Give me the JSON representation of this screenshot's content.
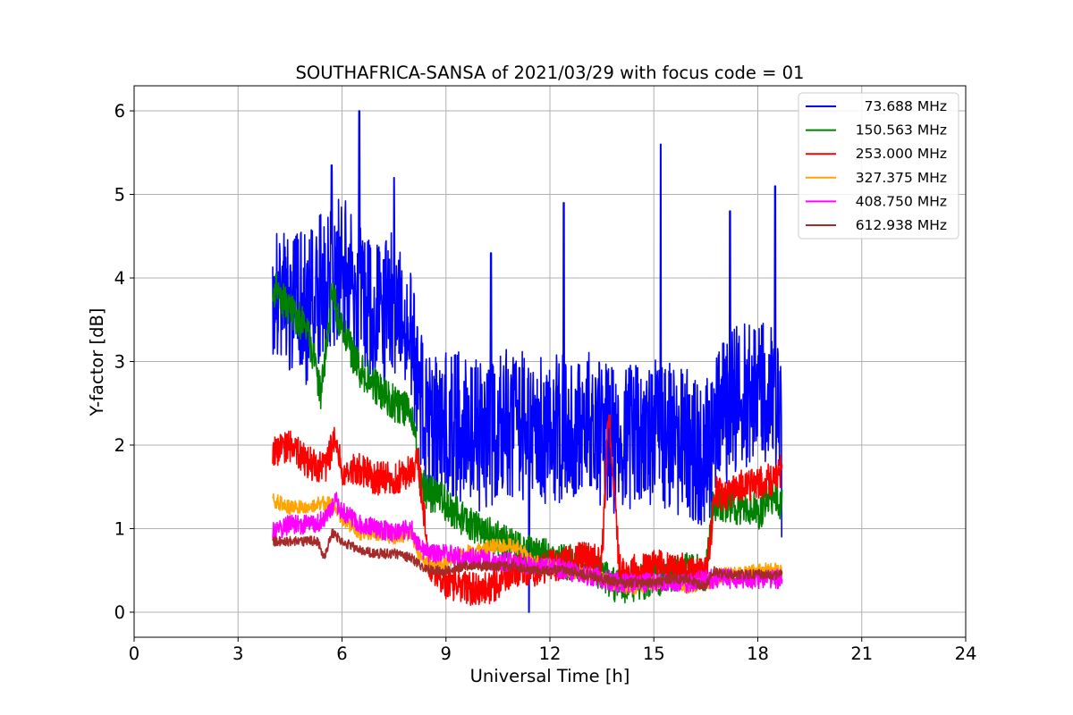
{
  "chart_data": {
    "type": "line",
    "title": "SOUTHAFRICA-SANSA of 2021/03/29 with focus code = 01",
    "xlabel": "Universal Time [h]",
    "ylabel": "Y-factor [dB]",
    "xlim": [
      0,
      24
    ],
    "ylim": [
      -0.3,
      6.3
    ],
    "xticks": [
      0,
      3,
      6,
      9,
      12,
      15,
      18,
      21,
      24
    ],
    "yticks": [
      0,
      1,
      2,
      3,
      4,
      5,
      6
    ],
    "grid": true,
    "legend_position": "top-right",
    "series": [
      {
        "name": "73.688 MHz",
        "color": "#0000ff",
        "x": [
          4.0,
          4.5,
          5.0,
          5.5,
          6.0,
          6.5,
          7.0,
          7.5,
          8.0,
          8.3,
          8.6,
          9.0,
          9.5,
          10.0,
          10.5,
          11.0,
          11.5,
          12.0,
          12.5,
          13.0,
          13.5,
          14.0,
          14.5,
          15.0,
          15.5,
          16.0,
          16.5,
          17.0,
          17.5,
          18.0,
          18.5,
          18.7
        ],
        "values": [
          3.6,
          3.8,
          3.6,
          4.0,
          4.1,
          3.8,
          3.6,
          3.7,
          3.5,
          2.4,
          2.2,
          2.3,
          2.2,
          2.1,
          2.2,
          2.3,
          2.1,
          2.2,
          2.2,
          2.3,
          2.1,
          2.0,
          2.1,
          2.2,
          2.1,
          2.0,
          1.9,
          2.4,
          2.6,
          2.7,
          2.6,
          2.5
        ],
        "peaks": [
          [
            5.7,
            5.35
          ],
          [
            6.5,
            6.0
          ],
          [
            7.5,
            5.2
          ],
          [
            10.3,
            4.3
          ],
          [
            12.4,
            4.9
          ],
          [
            15.2,
            5.6
          ],
          [
            17.2,
            4.8
          ],
          [
            18.5,
            5.1
          ]
        ],
        "dips": [
          [
            11.4,
            0.0
          ],
          [
            18.7,
            0.9
          ]
        ]
      },
      {
        "name": "150.563 MHz",
        "color": "#008000",
        "x": [
          4.0,
          4.5,
          5.0,
          5.4,
          5.7,
          6.0,
          6.5,
          7.0,
          7.5,
          8.0,
          8.3,
          8.6,
          9.0,
          9.5,
          10.0,
          10.5,
          11.0,
          11.5,
          12.0,
          12.5,
          13.0,
          13.5,
          14.0,
          14.5,
          15.0,
          15.5,
          16.0,
          16.5,
          16.7,
          17.0,
          17.5,
          18.0,
          18.5,
          18.7
        ],
        "values": [
          3.9,
          3.6,
          3.4,
          2.6,
          3.8,
          3.4,
          2.9,
          2.7,
          2.5,
          2.4,
          1.5,
          1.4,
          1.3,
          1.1,
          0.95,
          0.9,
          0.75,
          0.7,
          0.65,
          0.6,
          0.6,
          0.45,
          0.3,
          0.35,
          0.4,
          0.45,
          0.5,
          0.45,
          1.3,
          1.3,
          1.25,
          1.2,
          1.4,
          1.3
        ]
      },
      {
        "name": "253.000 MHz",
        "color": "#ff0000",
        "x": [
          4.0,
          4.5,
          5.0,
          5.5,
          5.8,
          6.0,
          6.5,
          7.0,
          7.5,
          8.0,
          8.2,
          8.5,
          9.0,
          9.5,
          10.0,
          10.5,
          11.0,
          11.5,
          12.0,
          12.5,
          13.0,
          13.5,
          13.7,
          14.0,
          14.5,
          15.0,
          15.5,
          16.0,
          16.5,
          16.8,
          17.0,
          17.5,
          18.0,
          18.5,
          18.7
        ],
        "values": [
          1.9,
          2.0,
          1.8,
          1.7,
          2.1,
          1.7,
          1.7,
          1.6,
          1.6,
          1.7,
          1.8,
          0.6,
          0.35,
          0.3,
          0.25,
          0.35,
          0.5,
          0.5,
          0.55,
          0.6,
          0.65,
          0.6,
          2.45,
          0.55,
          0.5,
          0.55,
          0.55,
          0.5,
          0.45,
          1.45,
          1.4,
          1.5,
          1.55,
          1.6,
          1.7
        ]
      },
      {
        "name": "327.375 MHz",
        "color": "#ffa500",
        "x": [
          4.0,
          4.5,
          5.0,
          5.4,
          5.8,
          6.0,
          6.5,
          7.0,
          7.5,
          8.0,
          8.3,
          8.6,
          9.0,
          9.5,
          10.0,
          10.5,
          11.0,
          11.5,
          12.0,
          12.5,
          13.0,
          13.5,
          14.0,
          14.5,
          15.0,
          15.5,
          16.0,
          16.5,
          17.0,
          17.5,
          18.0,
          18.5,
          18.7
        ],
        "values": [
          1.35,
          1.25,
          1.25,
          1.3,
          1.3,
          1.1,
          0.95,
          0.95,
          0.9,
          0.95,
          0.6,
          0.55,
          0.6,
          0.7,
          0.75,
          0.8,
          0.8,
          0.6,
          0.55,
          0.5,
          0.45,
          0.4,
          0.3,
          0.3,
          0.35,
          0.35,
          0.3,
          0.35,
          0.45,
          0.45,
          0.5,
          0.5,
          0.5
        ]
      },
      {
        "name": "408.750 MHz",
        "color": "#ff00ff",
        "x": [
          4.0,
          4.5,
          5.0,
          5.5,
          5.8,
          6.0,
          6.5,
          7.0,
          7.5,
          8.0,
          8.3,
          8.6,
          9.0,
          9.5,
          10.0,
          10.5,
          11.0,
          11.5,
          12.0,
          12.5,
          13.0,
          13.5,
          14.0,
          14.5,
          15.0,
          15.5,
          16.0,
          16.5,
          17.0,
          17.5,
          18.0,
          18.5,
          18.7
        ],
        "values": [
          0.95,
          1.05,
          1.05,
          1.1,
          1.35,
          1.2,
          1.05,
          1.0,
          0.95,
          1.0,
          0.75,
          0.7,
          0.7,
          0.65,
          0.65,
          0.6,
          0.6,
          0.55,
          0.55,
          0.5,
          0.45,
          0.4,
          0.35,
          0.35,
          0.35,
          0.35,
          0.35,
          0.4,
          0.4,
          0.4,
          0.4,
          0.4,
          0.4
        ]
      },
      {
        "name": "612.938 MHz",
        "color": "#a52a2a",
        "x": [
          4.0,
          4.5,
          5.0,
          5.3,
          5.5,
          5.7,
          6.0,
          6.5,
          7.0,
          7.5,
          8.0,
          8.3,
          8.6,
          9.0,
          9.5,
          10.0,
          10.5,
          11.0,
          11.5,
          12.0,
          12.5,
          13.0,
          13.5,
          14.0,
          14.5,
          15.0,
          15.5,
          16.0,
          16.5,
          16.7,
          17.0,
          17.5,
          18.0,
          18.5,
          18.7
        ],
        "values": [
          0.85,
          0.85,
          0.85,
          0.85,
          0.65,
          0.95,
          0.85,
          0.75,
          0.7,
          0.7,
          0.65,
          0.55,
          0.5,
          0.5,
          0.55,
          0.55,
          0.55,
          0.55,
          0.5,
          0.5,
          0.5,
          0.45,
          0.4,
          0.35,
          0.35,
          0.35,
          0.4,
          0.4,
          0.3,
          0.5,
          0.45,
          0.45,
          0.45,
          0.45,
          0.45
        ]
      }
    ]
  }
}
